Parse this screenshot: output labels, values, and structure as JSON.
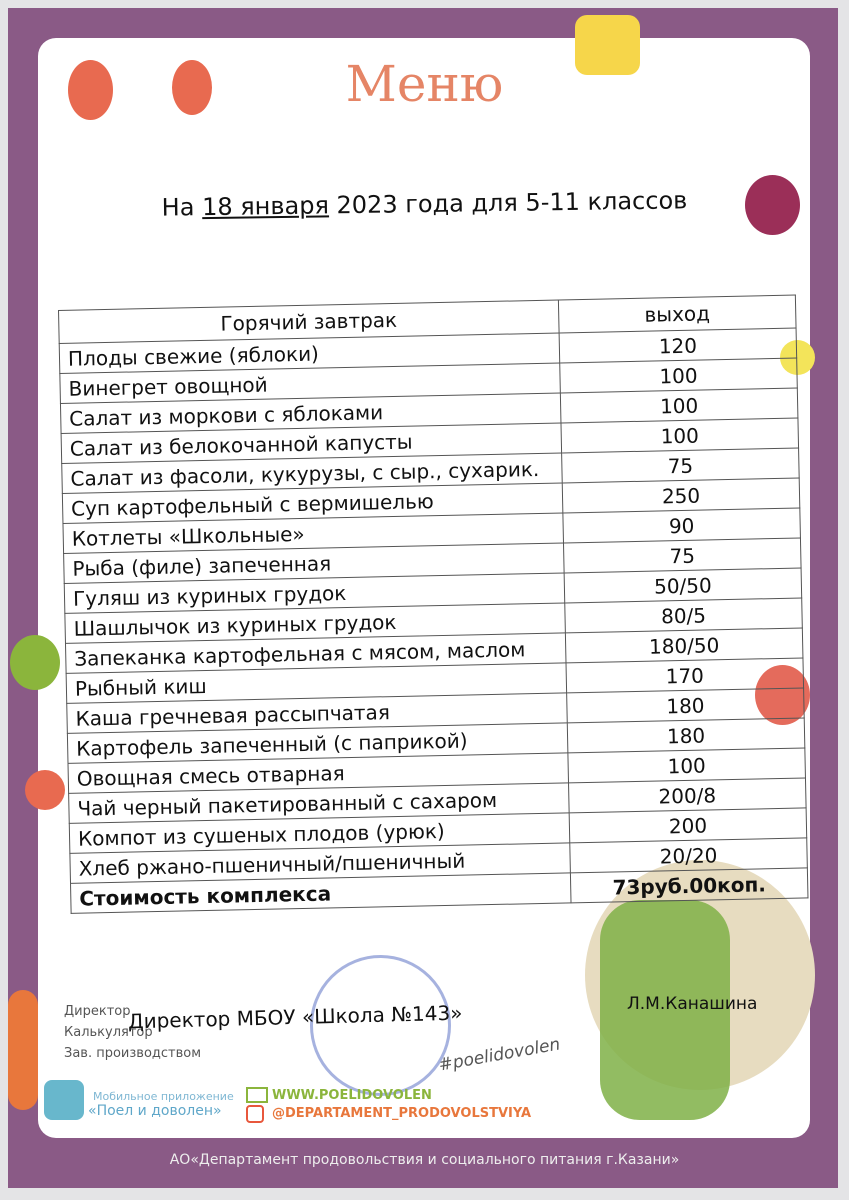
{
  "title": "Меню",
  "subtitle": {
    "prefix": "На ",
    "date": "18 января",
    "suffix": " 2023 года для 5-11 классов"
  },
  "table": {
    "header": {
      "name": "Горячий завтрак",
      "value": "выход"
    },
    "rows": [
      {
        "name": "Плоды свежие (яблоки)",
        "value": "120"
      },
      {
        "name": "Винегрет овощной",
        "value": "100"
      },
      {
        "name": "Салат из моркови с яблоками",
        "value": "100"
      },
      {
        "name": "Салат из белокочанной капусты",
        "value": "100"
      },
      {
        "name": "Салат из фасоли, кукурузы, с сыр., сухарик.",
        "value": "75"
      },
      {
        "name": "Суп картофельный с вермишелью",
        "value": "250"
      },
      {
        "name": "Котлеты «Школьные»",
        "value": "90"
      },
      {
        "name": "Рыба (филе) запеченная",
        "value": "75"
      },
      {
        "name": "Гуляш из куриных грудок",
        "value": "50/50"
      },
      {
        "name": "Шашлычок из куриных грудок",
        "value": "80/5"
      },
      {
        "name": "Запеканка картофельная с мясом, маслом",
        "value": "180/50"
      },
      {
        "name": "Рыбный киш",
        "value": "170"
      },
      {
        "name": "Каша гречневая рассыпчатая",
        "value": "180"
      },
      {
        "name": "Картофель запеченный (с паприкой)",
        "value": "180"
      },
      {
        "name": "Овощная смесь отварная",
        "value": "100"
      },
      {
        "name": "Чай черный пакетированный с сахаром",
        "value": "200/8"
      },
      {
        "name": "Компот из сушеных плодов (урюк)",
        "value": "200"
      },
      {
        "name": "Хлеб ржано-пшеничный/пшеничный",
        "value": "20/20"
      }
    ],
    "total": {
      "name": "Стоимость комплекса",
      "value": "73руб.00коп."
    }
  },
  "signatures": {
    "director_label": "Директор",
    "calc_label": "Калькулятор",
    "prod_label": "Зав. производством",
    "director_title": "Директор МБОУ «Школа №143»",
    "director_name": "Л.М.Канашина",
    "hashtag": "#poelidovolen"
  },
  "footer": {
    "app_label": "Мобильное приложение",
    "app_name": "«Поел и доволен»",
    "website": "WWW.POELIDOVOLEN",
    "instagram": "@DEPARTAMENT_PRODOVOLSTVIYA",
    "org": "АО«Департамент продовольствия и социального питания г.Казани»"
  },
  "colors": {
    "frame": "#8a5a86",
    "title": "#e58566",
    "accent_green": "#8bb53c",
    "accent_orange": "#e8773c"
  }
}
